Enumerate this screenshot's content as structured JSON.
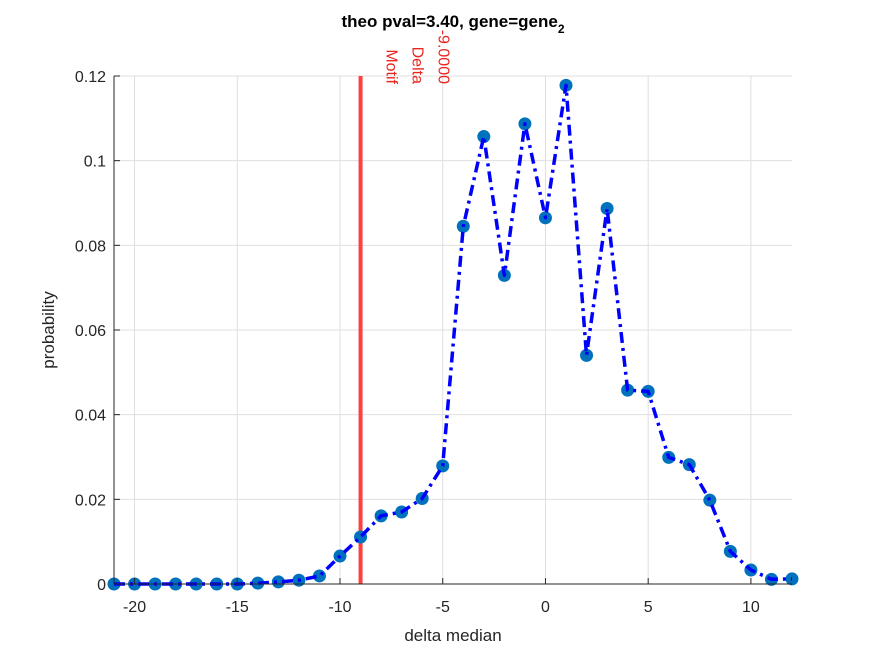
{
  "chart_data": {
    "type": "line",
    "title": "theo pval=3.40, gene=gene",
    "title_subscript": "2",
    "xlabel": "delta median",
    "ylabel": "probability",
    "xlim": [
      -21,
      12
    ],
    "ylim": [
      0,
      0.12
    ],
    "xticks": [
      -20,
      -15,
      -10,
      -5,
      0,
      5,
      10
    ],
    "xtick_labels": [
      "-20",
      "-15",
      "-10",
      "-5",
      "0",
      "5",
      "10"
    ],
    "yticks": [
      0,
      0.02,
      0.04,
      0.06,
      0.08,
      0.1,
      0.12
    ],
    "ytick_labels": [
      "0",
      "0.02",
      "0.04",
      "0.06",
      "0.08",
      "0.1",
      "0.12"
    ],
    "grid": true,
    "line_style": "dash-dot",
    "line_color": "#0000ff",
    "marker_color": "#0072bd",
    "series": [
      {
        "x": [
          -21,
          -20,
          -19,
          -18,
          -17,
          -16,
          -15,
          -14,
          -13,
          -12,
          -11,
          -10,
          -9,
          -8,
          -7,
          -6,
          -5,
          -4,
          -3,
          -2,
          -1,
          0,
          1,
          2,
          3,
          4,
          5,
          6,
          7,
          8,
          9,
          10,
          11,
          12
        ],
        "y": [
          0,
          0,
          0,
          0,
          0,
          0,
          0,
          0.0002,
          0.0005,
          0.0009,
          0.0019,
          0.0066,
          0.0111,
          0.0161,
          0.017,
          0.0202,
          0.0279,
          0.0845,
          0.1057,
          0.0729,
          0.1087,
          0.0865,
          0.1178,
          0.054,
          0.0887,
          0.0458,
          0.0455,
          0.0299,
          0.0282,
          0.0198,
          0.0077,
          0.0033,
          0.0011,
          0.0012
        ]
      }
    ],
    "reference_line": {
      "x": -9,
      "color": "#ff4040",
      "label_lines": [
        "Motif",
        "Delta",
        "-9.0000"
      ]
    }
  }
}
